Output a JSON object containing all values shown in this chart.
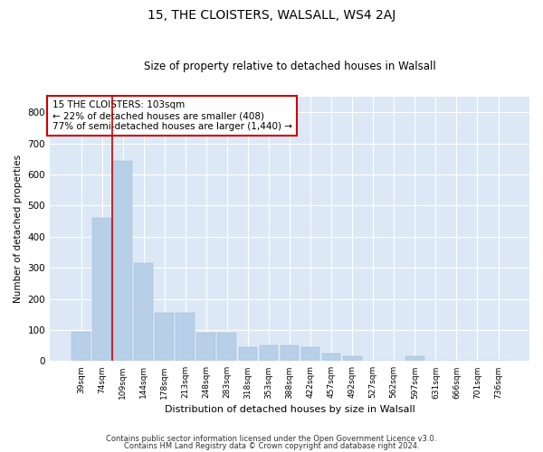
{
  "title": "15, THE CLOISTERS, WALSALL, WS4 2AJ",
  "subtitle": "Size of property relative to detached houses in Walsall",
  "xlabel": "Distribution of detached houses by size in Walsall",
  "ylabel": "Number of detached properties",
  "categories": [
    "39sqm",
    "74sqm",
    "109sqm",
    "144sqm",
    "178sqm",
    "213sqm",
    "248sqm",
    "283sqm",
    "318sqm",
    "353sqm",
    "388sqm",
    "422sqm",
    "457sqm",
    "492sqm",
    "527sqm",
    "562sqm",
    "597sqm",
    "631sqm",
    "666sqm",
    "701sqm",
    "736sqm"
  ],
  "values": [
    95,
    460,
    645,
    315,
    155,
    155,
    90,
    90,
    45,
    50,
    50,
    45,
    25,
    15,
    0,
    0,
    15,
    0,
    0,
    0,
    0
  ],
  "bar_color": "#b8cfe8",
  "bar_edge_color": "#b8cfe8",
  "vline_color": "#cc0000",
  "annotation_text": "15 THE CLOISTERS: 103sqm\n← 22% of detached houses are smaller (408)\n77% of semi-detached houses are larger (1,440) →",
  "annotation_box_color": "#ffffff",
  "annotation_box_edge_color": "#cc0000",
  "ylim": [
    0,
    850
  ],
  "yticks": [
    0,
    100,
    200,
    300,
    400,
    500,
    600,
    700,
    800
  ],
  "bg_color": "#dce8f5",
  "grid_color": "#ffffff",
  "footer_line1": "Contains HM Land Registry data © Crown copyright and database right 2024.",
  "footer_line2": "Contains public sector information licensed under the Open Government Licence v3.0."
}
